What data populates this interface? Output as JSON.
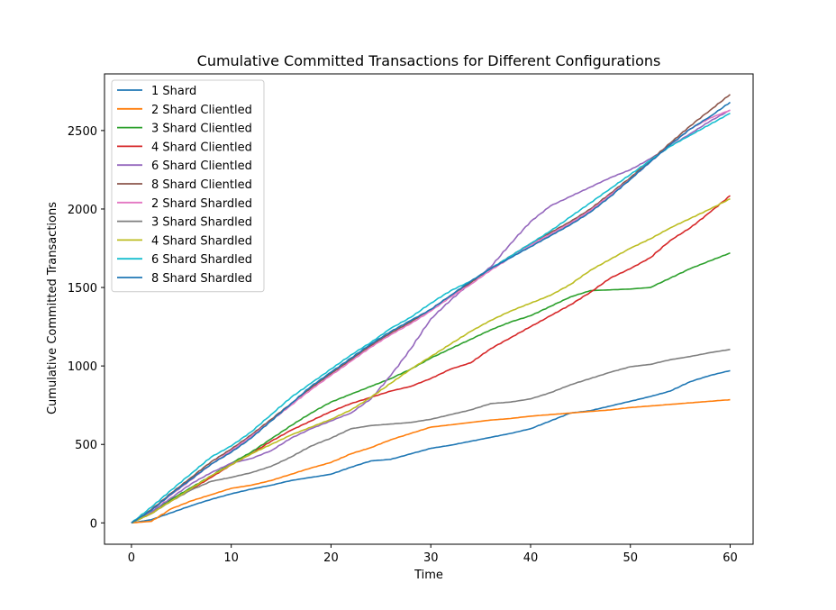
{
  "chart_data": {
    "type": "line",
    "title": "Cumulative Committed Transactions for Different Configurations",
    "xlabel": "Time",
    "ylabel": "Cumulative Committed Transactions",
    "xlim": [
      -2.7,
      62.3
    ],
    "ylim": [
      -136,
      2861
    ],
    "xticks": [
      0,
      10,
      20,
      30,
      40,
      50,
      60
    ],
    "yticks": [
      0,
      500,
      1000,
      1500,
      2000,
      2500
    ],
    "grid": false,
    "legend_position": "upper-left",
    "series": [
      {
        "name": "1 Shard",
        "color": "#1f77b4",
        "x": [
          0,
          2,
          4,
          6,
          8,
          10,
          12,
          14,
          16,
          18,
          20,
          22,
          24,
          26,
          28,
          30,
          32,
          34,
          36,
          38,
          40,
          42,
          44,
          46,
          48,
          50,
          52,
          54,
          56,
          58,
          60
        ],
        "y": [
          0,
          20,
          65,
          110,
          150,
          185,
          215,
          240,
          270,
          290,
          310,
          355,
          395,
          405,
          440,
          475,
          495,
          520,
          545,
          570,
          600,
          650,
          700,
          715,
          745,
          775,
          805,
          840,
          900,
          940,
          970
        ]
      },
      {
        "name": "2 Shard Clientled",
        "color": "#ff7f0e",
        "x": [
          0,
          2,
          4,
          6,
          8,
          10,
          12,
          14,
          16,
          18,
          20,
          22,
          24,
          26,
          28,
          30,
          32,
          34,
          36,
          38,
          40,
          42,
          44,
          46,
          48,
          50,
          52,
          54,
          56,
          58,
          60
        ],
        "y": [
          0,
          10,
          90,
          140,
          180,
          220,
          240,
          270,
          310,
          350,
          385,
          440,
          480,
          530,
          570,
          610,
          625,
          640,
          655,
          665,
          680,
          690,
          700,
          710,
          720,
          735,
          745,
          755,
          765,
          775,
          785
        ]
      },
      {
        "name": "3 Shard Clientled",
        "color": "#2ca02c",
        "x": [
          0,
          2,
          4,
          6,
          8,
          10,
          12,
          14,
          16,
          18,
          20,
          22,
          24,
          26,
          28,
          30,
          32,
          34,
          36,
          38,
          40,
          42,
          44,
          46,
          48,
          50,
          52,
          54,
          56,
          58,
          60
        ],
        "y": [
          0,
          70,
          150,
          225,
          300,
          380,
          450,
          535,
          620,
          700,
          770,
          820,
          870,
          920,
          980,
          1050,
          1110,
          1170,
          1230,
          1280,
          1320,
          1380,
          1440,
          1480,
          1485,
          1490,
          1500,
          1560,
          1620,
          1670,
          1720
        ]
      },
      {
        "name": "4 Shard Clientled",
        "color": "#d62728",
        "x": [
          0,
          2,
          4,
          6,
          8,
          10,
          12,
          14,
          16,
          18,
          20,
          22,
          24,
          26,
          28,
          30,
          32,
          34,
          36,
          38,
          40,
          42,
          44,
          46,
          48,
          50,
          52,
          54,
          56,
          58,
          60
        ],
        "y": [
          0,
          60,
          140,
          215,
          290,
          370,
          440,
          520,
          590,
          650,
          710,
          760,
          800,
          840,
          870,
          920,
          980,
          1020,
          1110,
          1180,
          1250,
          1320,
          1390,
          1470,
          1560,
          1620,
          1690,
          1800,
          1880,
          1980,
          2085
        ]
      },
      {
        "name": "6 Shard Clientled",
        "color": "#9467bd",
        "x": [
          0,
          2,
          4,
          6,
          8,
          10,
          12,
          14,
          16,
          18,
          20,
          22,
          24,
          26,
          28,
          30,
          32,
          34,
          36,
          38,
          40,
          42,
          44,
          46,
          48,
          50,
          52,
          54,
          56,
          58,
          60
        ],
        "y": [
          0,
          70,
          160,
          250,
          320,
          380,
          410,
          460,
          540,
          600,
          650,
          700,
          790,
          940,
          1110,
          1300,
          1420,
          1530,
          1630,
          1780,
          1920,
          2020,
          2080,
          2140,
          2200,
          2250,
          2320,
          2400,
          2480,
          2560,
          2630
        ]
      },
      {
        "name": "8 Shard Clientled",
        "color": "#8c564b",
        "x": [
          0,
          2,
          4,
          6,
          8,
          10,
          12,
          14,
          16,
          18,
          20,
          22,
          24,
          26,
          28,
          30,
          32,
          34,
          36,
          38,
          40,
          42,
          44,
          46,
          48,
          50,
          52,
          54,
          56,
          58,
          60
        ],
        "y": [
          0,
          85,
          190,
          290,
          390,
          470,
          560,
          660,
          760,
          860,
          950,
          1040,
          1130,
          1210,
          1280,
          1360,
          1450,
          1530,
          1620,
          1700,
          1780,
          1850,
          1920,
          2000,
          2100,
          2200,
          2310,
          2420,
          2530,
          2630,
          2730
        ]
      },
      {
        "name": "2 Shard Shardled",
        "color": "#e377c2",
        "x": [
          0,
          2,
          4,
          6,
          8,
          10,
          12,
          14,
          16,
          18,
          20,
          22,
          24,
          26,
          28,
          30,
          32,
          34,
          36,
          38,
          40,
          42,
          44,
          46,
          48,
          50,
          52,
          54,
          56,
          58,
          60
        ],
        "y": [
          0,
          80,
          180,
          275,
          375,
          460,
          550,
          650,
          750,
          850,
          940,
          1030,
          1120,
          1200,
          1270,
          1350,
          1440,
          1520,
          1610,
          1690,
          1770,
          1840,
          1910,
          1990,
          2090,
          2190,
          2300,
          2410,
          2510,
          2580,
          2630
        ]
      },
      {
        "name": "3 Shard Shardled",
        "color": "#7f7f7f",
        "x": [
          0,
          2,
          4,
          6,
          8,
          10,
          12,
          14,
          16,
          18,
          20,
          22,
          24,
          26,
          28,
          30,
          32,
          34,
          36,
          38,
          40,
          42,
          44,
          46,
          48,
          50,
          52,
          54,
          56,
          58,
          60
        ],
        "y": [
          0,
          60,
          140,
          210,
          265,
          290,
          320,
          360,
          420,
          490,
          540,
          600,
          620,
          630,
          640,
          660,
          690,
          720,
          760,
          770,
          790,
          830,
          880,
          920,
          960,
          995,
          1010,
          1040,
          1060,
          1085,
          1105
        ]
      },
      {
        "name": "4 Shard Shardled",
        "color": "#bcbd22",
        "x": [
          0,
          2,
          4,
          6,
          8,
          10,
          12,
          14,
          16,
          18,
          20,
          22,
          24,
          26,
          28,
          30,
          32,
          34,
          36,
          38,
          40,
          42,
          44,
          46,
          48,
          50,
          52,
          54,
          56,
          58,
          60
        ],
        "y": [
          0,
          60,
          140,
          220,
          300,
          370,
          440,
          500,
          560,
          610,
          660,
          720,
          800,
          890,
          980,
          1060,
          1140,
          1220,
          1290,
          1350,
          1400,
          1450,
          1520,
          1610,
          1680,
          1750,
          1810,
          1880,
          1940,
          2000,
          2065
        ]
      },
      {
        "name": "6 Shard Shardled",
        "color": "#17becf",
        "x": [
          0,
          2,
          4,
          6,
          8,
          10,
          12,
          14,
          16,
          18,
          20,
          22,
          24,
          26,
          28,
          30,
          32,
          34,
          36,
          38,
          40,
          42,
          44,
          46,
          48,
          50,
          52,
          54,
          56,
          58,
          60
        ],
        "y": [
          0,
          100,
          210,
          315,
          420,
          490,
          580,
          690,
          800,
          890,
          980,
          1070,
          1150,
          1240,
          1310,
          1400,
          1480,
          1540,
          1620,
          1700,
          1780,
          1860,
          1950,
          2040,
          2130,
          2220,
          2310,
          2400,
          2470,
          2540,
          2610
        ]
      },
      {
        "name": "8 Shard Shardled",
        "color": "#1f77b4",
        "x": [
          0,
          2,
          4,
          6,
          8,
          10,
          12,
          14,
          16,
          18,
          20,
          22,
          24,
          26,
          28,
          30,
          32,
          34,
          36,
          38,
          40,
          42,
          44,
          46,
          48,
          50,
          52,
          54,
          56,
          58,
          60
        ],
        "y": [
          0,
          80,
          185,
          280,
          375,
          450,
          540,
          650,
          760,
          870,
          960,
          1050,
          1140,
          1220,
          1290,
          1360,
          1450,
          1540,
          1620,
          1690,
          1760,
          1830,
          1900,
          1980,
          2080,
          2190,
          2300,
          2410,
          2510,
          2590,
          2680
        ]
      }
    ]
  }
}
